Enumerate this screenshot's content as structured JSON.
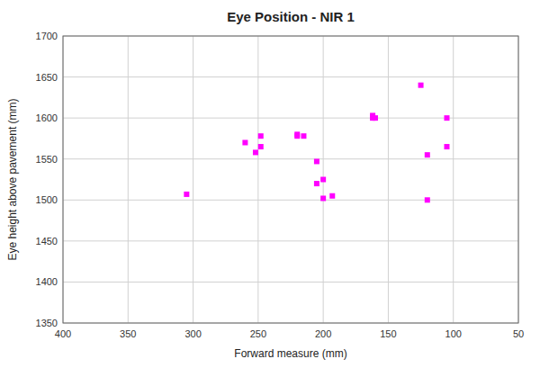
{
  "chart_data": {
    "type": "scatter",
    "title": "Eye Position - NIR 1",
    "xlabel": "Forward measure (mm)",
    "ylabel": "Eye height above pavement (mm)",
    "x": [
      305,
      248,
      252,
      248,
      260,
      193,
      200,
      205,
      215,
      200,
      205,
      220,
      220,
      162,
      162,
      160,
      125,
      120,
      105,
      105,
      120
    ],
    "values": [
      1507,
      1578,
      1558,
      1565,
      1570,
      1505,
      1502,
      1547,
      1578,
      1525,
      1520,
      1580,
      1578,
      1603,
      1600,
      1600,
      1640,
      1555,
      1600,
      1565,
      1500
    ],
    "color": "#FF00FF",
    "marker": "square",
    "xlim": [
      400,
      50
    ],
    "ylim": [
      1350,
      1700
    ],
    "xticks": [
      400,
      350,
      300,
      250,
      200,
      150,
      100,
      50
    ],
    "yticks": [
      1350,
      1400,
      1450,
      1500,
      1550,
      1600,
      1650,
      1700
    ],
    "grid": true
  }
}
